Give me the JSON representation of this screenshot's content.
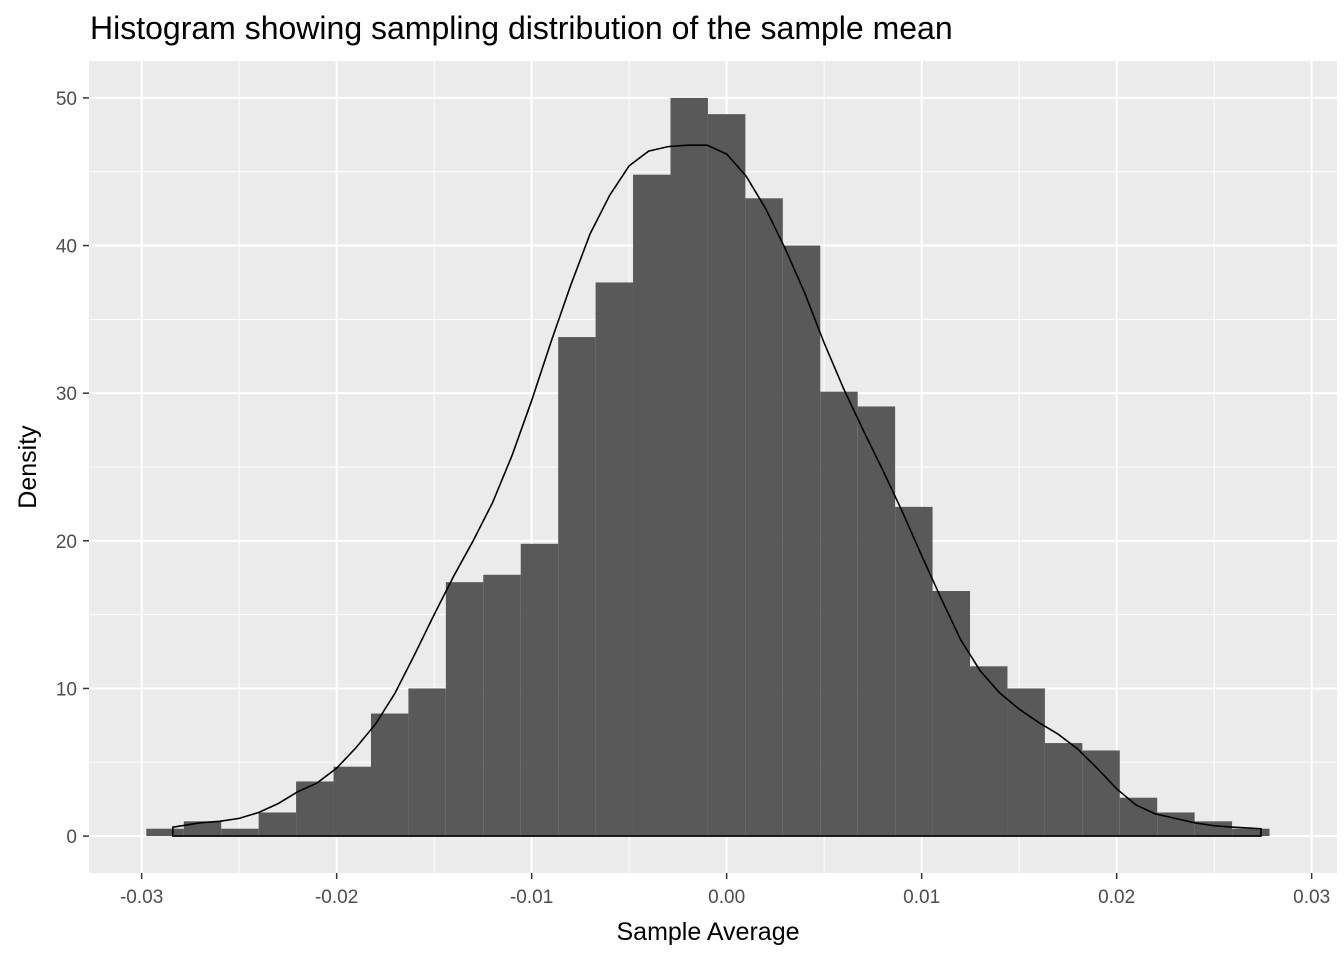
{
  "chart_data": {
    "type": "histogram",
    "title": "Histogram showing sampling distribution of the sample mean",
    "xlabel": "Sample Average",
    "ylabel": "Density",
    "xlim": [
      -0.0327,
      0.0313
    ],
    "ylim": [
      -2.5,
      52.5
    ],
    "x_ticks": [
      -0.03,
      -0.02,
      -0.01,
      0.0,
      0.01,
      0.02,
      0.03
    ],
    "x_tick_labels": [
      "-0.03",
      "-0.02",
      "-0.01",
      "0.00",
      "0.01",
      "0.02",
      "0.03"
    ],
    "y_ticks": [
      0,
      10,
      20,
      30,
      40,
      50
    ],
    "y_tick_labels": [
      "0",
      "10",
      "20",
      "30",
      "40",
      "50"
    ],
    "bins": [
      {
        "x0": -0.02976,
        "x1": -0.02784,
        "density": 0.5
      },
      {
        "x0": -0.02784,
        "x1": -0.02592,
        "density": 1.0
      },
      {
        "x0": -0.02592,
        "x1": -0.024,
        "density": 0.5
      },
      {
        "x0": -0.024,
        "x1": -0.02208,
        "density": 1.6
      },
      {
        "x0": -0.02208,
        "x1": -0.02016,
        "density": 3.7
      },
      {
        "x0": -0.02016,
        "x1": -0.01824,
        "density": 4.7
      },
      {
        "x0": -0.01824,
        "x1": -0.01632,
        "density": 8.3
      },
      {
        "x0": -0.01632,
        "x1": -0.0144,
        "density": 10.0
      },
      {
        "x0": -0.0144,
        "x1": -0.01248,
        "density": 17.2
      },
      {
        "x0": -0.01248,
        "x1": -0.01056,
        "density": 17.7
      },
      {
        "x0": -0.01056,
        "x1": -0.00864,
        "density": 19.8
      },
      {
        "x0": -0.00864,
        "x1": -0.00672,
        "density": 33.8
      },
      {
        "x0": -0.00672,
        "x1": -0.0048,
        "density": 37.5
      },
      {
        "x0": -0.0048,
        "x1": -0.00288,
        "density": 44.8
      },
      {
        "x0": -0.00288,
        "x1": -0.00096,
        "density": 50.0
      },
      {
        "x0": -0.00096,
        "x1": 0.00096,
        "density": 48.9
      },
      {
        "x0": 0.00096,
        "x1": 0.00288,
        "density": 43.2
      },
      {
        "x0": 0.00288,
        "x1": 0.0048,
        "density": 40.0
      },
      {
        "x0": 0.0048,
        "x1": 0.00672,
        "density": 30.1
      },
      {
        "x0": 0.00672,
        "x1": 0.00864,
        "density": 29.1
      },
      {
        "x0": 0.00864,
        "x1": 0.01056,
        "density": 22.3
      },
      {
        "x0": 0.01056,
        "x1": 0.01248,
        "density": 16.6
      },
      {
        "x0": 0.01248,
        "x1": 0.0144,
        "density": 11.5
      },
      {
        "x0": 0.0144,
        "x1": 0.01632,
        "density": 10.0
      },
      {
        "x0": 0.01632,
        "x1": 0.01824,
        "density": 6.3
      },
      {
        "x0": 0.01824,
        "x1": 0.02016,
        "density": 5.8
      },
      {
        "x0": 0.02016,
        "x1": 0.02208,
        "density": 2.6
      },
      {
        "x0": 0.02208,
        "x1": 0.024,
        "density": 1.6
      },
      {
        "x0": 0.024,
        "x1": 0.02592,
        "density": 1.0
      },
      {
        "x0": 0.02592,
        "x1": 0.02784,
        "density": 0.5
      }
    ],
    "density_curve": {
      "x": [
        -0.0284,
        -0.027,
        -0.026,
        -0.025,
        -0.024,
        -0.023,
        -0.022,
        -0.021,
        -0.02,
        -0.019,
        -0.018,
        -0.017,
        -0.016,
        -0.015,
        -0.014,
        -0.013,
        -0.012,
        -0.011,
        -0.01,
        -0.009,
        -0.008,
        -0.007,
        -0.006,
        -0.005,
        -0.004,
        -0.003,
        -0.002,
        -0.001,
        0.0,
        0.001,
        0.002,
        0.003,
        0.004,
        0.005,
        0.006,
        0.007,
        0.008,
        0.009,
        0.01,
        0.011,
        0.012,
        0.013,
        0.014,
        0.015,
        0.016,
        0.017,
        0.018,
        0.019,
        0.02,
        0.021,
        0.022,
        0.023,
        0.024,
        0.025,
        0.026,
        0.0274
      ],
      "y": [
        0.6,
        0.9,
        1.0,
        1.2,
        1.6,
        2.2,
        3.0,
        3.6,
        4.6,
        6.0,
        7.6,
        9.7,
        12.3,
        15.0,
        17.6,
        20.0,
        22.6,
        25.8,
        29.5,
        33.5,
        37.3,
        40.8,
        43.4,
        45.4,
        46.4,
        46.7,
        46.8,
        46.8,
        46.2,
        44.7,
        42.5,
        39.8,
        36.8,
        33.4,
        30.3,
        27.5,
        24.8,
        22.0,
        19.0,
        16.1,
        13.3,
        11.2,
        9.7,
        8.6,
        7.7,
        6.9,
        5.9,
        4.6,
        3.2,
        2.1,
        1.5,
        1.2,
        0.9,
        0.7,
        0.6,
        0.5
      ]
    },
    "colors": {
      "panel_bg": "#ebebeb",
      "gridline": "#ffffff",
      "bar_fill": "#595959",
      "curve_stroke": "#000000",
      "tick_text": "#4d4d4d",
      "axis_text": "#000000"
    }
  }
}
